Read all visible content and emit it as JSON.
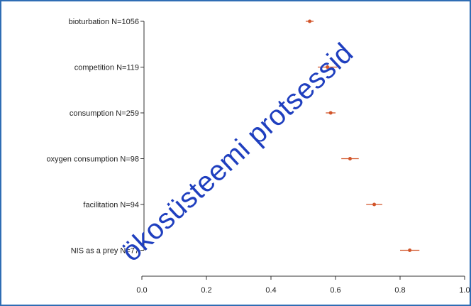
{
  "chart_data": {
    "type": "scatter",
    "title": "",
    "xlabel": "",
    "ylabel": "",
    "xlim": [
      0.0,
      1.0
    ],
    "x_ticks": [
      "0.0",
      "0.2",
      "0.4",
      "0.6",
      "0.8",
      "1.0"
    ],
    "categories": [
      "bioturbation N=1056",
      "competition N=119",
      "consumption N=259",
      "oxygen consumption N=98",
      "facilitation N=94",
      "NIS as a prey N=77"
    ],
    "estimates": [
      0.52,
      0.575,
      0.585,
      0.645,
      0.72,
      0.83
    ],
    "ci_low": [
      0.508,
      0.545,
      0.57,
      0.618,
      0.695,
      0.8
    ],
    "ci_high": [
      0.532,
      0.605,
      0.6,
      0.672,
      0.745,
      0.86
    ],
    "grid": false,
    "legend": "none"
  },
  "watermark": {
    "text": "ökosüsteemi protsessid"
  },
  "colors": {
    "border": "#2f6db4",
    "point": "#d2552a",
    "axis": "#333333",
    "watermark": "#1f3fbf"
  }
}
